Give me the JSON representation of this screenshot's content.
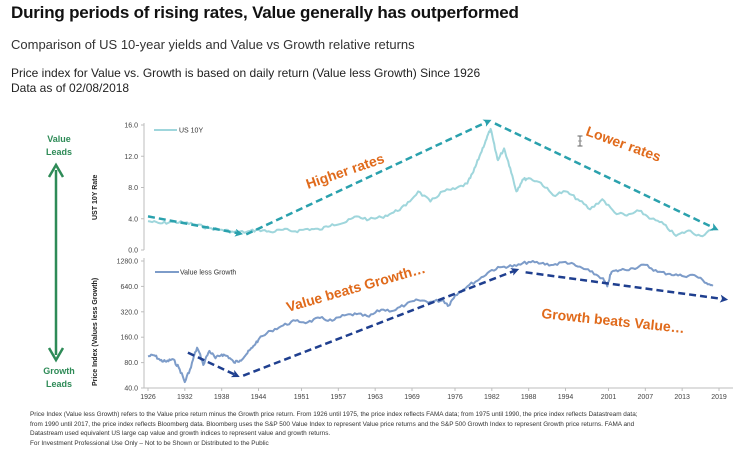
{
  "header": {
    "title": "During periods of rising rates, Value generally has outperformed",
    "subtitle": "Comparison of US 10-year yields and Value vs Growth relative returns",
    "note_line1": "Price index for Value vs. Growth is based on daily return (Value less Growth) Since 1926",
    "note_line2": "Data as of 02/08/2018"
  },
  "side_labels": {
    "top": [
      "Value",
      "Leads"
    ],
    "bottom": [
      "Growth",
      "Leads"
    ],
    "color": "#2e8b57"
  },
  "footnote": {
    "lines": [
      "Price Index (Value less Growth) refers to the Value price return minus the Growth price return. From 1926 until 1975, the price index reflects FAMA data;  from 1975 until 1990, the price index reflects Datastream data;",
      "from 1990 until 2017, the price index reflects Bloomberg data. Bloomberg uses the S&P 500 Value Index to represent Value price returns and the S&P 500 Growth Index to represent Growth price returns. FAMA and",
      "Datastream used equivalent US large cap value and growth indices to represent value and growth returns.",
      " For Investment Professional Use Only – Not to be Shown or Distributed to the Public"
    ]
  },
  "chart_data": [
    {
      "type": "line",
      "title": "US 10-year yield",
      "ylabel": "UST 10Y Rate",
      "ylim": [
        0,
        16
      ],
      "yticks": [
        "16.0",
        "12.0",
        "8.0",
        "4.0",
        "0.0"
      ],
      "ytick_values": [
        16,
        12,
        8,
        4,
        0
      ],
      "xlim": [
        1926,
        2019
      ],
      "legend": {
        "label": "US 10Y",
        "position": "top-left"
      },
      "color": "#9fd6dc",
      "series": [
        {
          "name": "US 10Y",
          "x": [
            1926,
            1928,
            1930,
            1932,
            1934,
            1936,
            1938,
            1940,
            1942,
            1944,
            1946,
            1948,
            1950,
            1952,
            1954,
            1956,
            1958,
            1960,
            1962,
            1964,
            1966,
            1968,
            1970,
            1972,
            1974,
            1976,
            1978,
            1979,
            1980,
            1981,
            1981.8,
            1982.5,
            1983,
            1984,
            1985,
            1986,
            1987,
            1988,
            1990,
            1992,
            1994,
            1996,
            1998,
            2000,
            2002,
            2004,
            2006,
            2008,
            2010,
            2012,
            2014,
            2016,
            2018
          ],
          "values": [
            3.7,
            3.4,
            3.6,
            3.5,
            3.2,
            2.8,
            2.6,
            2.3,
            2.3,
            2.6,
            2.3,
            2.6,
            2.4,
            2.7,
            2.6,
            3.3,
            3.5,
            4.3,
            3.9,
            4.2,
            4.8,
            5.7,
            7.5,
            6.2,
            7.5,
            7.8,
            8.5,
            10.0,
            12.0,
            14.0,
            15.5,
            13.0,
            11.5,
            13.0,
            10.5,
            7.5,
            9.0,
            9.2,
            8.6,
            7.0,
            7.5,
            6.5,
            5.2,
            6.5,
            4.8,
            4.4,
            5.0,
            4.0,
            3.3,
            1.8,
            2.5,
            1.8,
            2.6
          ]
        }
      ],
      "annotations": [
        {
          "text": "Higher rates",
          "color": "#e06a1b"
        },
        {
          "text": "Lower rates",
          "color": "#e06a1b"
        }
      ],
      "trend_arrows": [
        {
          "from": [
            1926,
            4.3
          ],
          "to": [
            1941,
            2.1
          ]
        },
        {
          "from": [
            1942,
            2.0
          ],
          "to": [
            1981.5,
            16.5
          ]
        },
        {
          "from": [
            1982.5,
            16.2
          ],
          "to": [
            2018.5,
            2.7
          ]
        }
      ],
      "trend_color": "#2aa1ad"
    },
    {
      "type": "line",
      "title": "Value less Growth price index",
      "ylabel": "Price Index (Values less Growth)",
      "yscale": "log",
      "ylim": [
        40,
        1280
      ],
      "yticks": [
        "1280.0",
        "640.0",
        "320.0",
        "160.0",
        "80.0",
        "40.0"
      ],
      "ytick_values": [
        1280,
        640,
        320,
        160,
        80,
        40
      ],
      "xlim": [
        1926,
        2019
      ],
      "xticks": [
        "1926",
        "1932",
        "1938",
        "1944",
        "1951",
        "1957",
        "1963",
        "1969",
        "1976",
        "1982",
        "1988",
        "1994",
        "2001",
        "2007",
        "2013",
        "2019"
      ],
      "xtick_values": [
        1926,
        1932,
        1938,
        1944,
        1951,
        1957,
        1963,
        1969,
        1976,
        1982,
        1988,
        1994,
        2001,
        2007,
        2013,
        2019
      ],
      "legend": {
        "label": "Value less Growth",
        "position": "top-left"
      },
      "color": "#7d9cc9",
      "series": [
        {
          "name": "Value less Growth",
          "x": [
            1926,
            1927,
            1928,
            1929,
            1930,
            1931,
            1932,
            1933,
            1934,
            1935,
            1936,
            1937,
            1938,
            1939,
            1940,
            1941,
            1942,
            1943,
            1944,
            1946,
            1948,
            1950,
            1952,
            1954,
            1956,
            1958,
            1960,
            1962,
            1964,
            1966,
            1968,
            1970,
            1972,
            1974,
            1975,
            1976,
            1978,
            1980,
            1982,
            1984,
            1986,
            1988,
            1990,
            1992,
            1994,
            1996,
            1998,
            2000,
            2000.8,
            2001.5,
            2003,
            2005,
            2007,
            2009,
            2011,
            2013,
            2015,
            2017,
            2018
          ],
          "values": [
            95,
            98,
            85,
            82,
            88,
            70,
            47,
            70,
            120,
            75,
            110,
            90,
            100,
            95,
            80,
            85,
            100,
            120,
            150,
            190,
            220,
            250,
            240,
            270,
            250,
            290,
            300,
            280,
            340,
            330,
            390,
            440,
            420,
            440,
            380,
            500,
            640,
            780,
            1000,
            1100,
            1120,
            1250,
            1200,
            1150,
            1250,
            1100,
            960,
            800,
            640,
            950,
            1000,
            1050,
            1150,
            950,
            900,
            850,
            870,
            700,
            650
          ]
        }
      ],
      "annotations": [
        {
          "text": "Value beats Growth…",
          "color": "#e06a1b"
        },
        {
          "text": "Growth beats Value…",
          "color": "#e06a1b"
        }
      ],
      "trend_arrows": [
        {
          "from": [
            1932.5,
            105
          ],
          "to": [
            1940.5,
            56
          ]
        },
        {
          "from": [
            1941.5,
            56
          ],
          "to": [
            1986,
            1000
          ]
        },
        {
          "from": [
            1987.5,
            940
          ],
          "to": [
            2020,
            450
          ]
        }
      ],
      "trend_color": "#1f3f8f"
    }
  ]
}
